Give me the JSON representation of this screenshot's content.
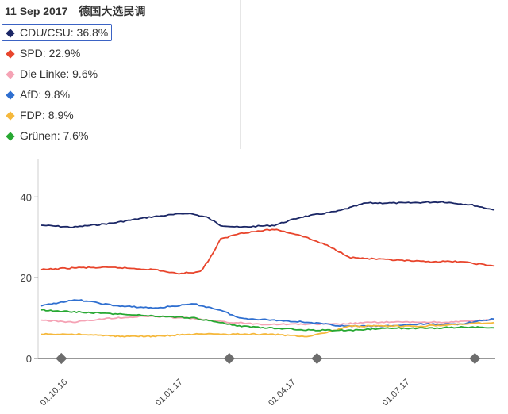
{
  "header": {
    "date": "11 Sep 2017",
    "title": "德国大选民调"
  },
  "legend": [
    {
      "label": "CDU/CSU: 36.8%",
      "color": "#1b2766",
      "selected": true
    },
    {
      "label": "SPD: 22.9%",
      "color": "#e8452c"
    },
    {
      "label": "Die Linke: 9.6%",
      "color": "#f5a3b5"
    },
    {
      "label": "AfD: 9.8%",
      "color": "#2f6fd0"
    },
    {
      "label": "FDP: 8.9%",
      "color": "#f5b83c"
    },
    {
      "label": "Grünen: 7.6%",
      "color": "#27a832"
    }
  ],
  "chart_data": {
    "type": "line",
    "ylim": [
      0,
      44
    ],
    "yticks": [
      0,
      20,
      40
    ],
    "x_range": [
      "2016-09-15",
      "2017-09-11"
    ],
    "xticks": [
      "01.10.16",
      "01.01.17",
      "01.04.17",
      "01.07.17"
    ],
    "xtick_dates": [
      "2016-10-01",
      "2017-01-01",
      "2017-04-01",
      "2017-07-01"
    ],
    "event_marker_dates": [
      "2016-10-01",
      "2017-02-12",
      "2017-04-23",
      "2017-08-27"
    ],
    "grid": false,
    "series": [
      {
        "name": "CDU/CSU",
        "color": "#1b2766",
        "points": [
          [
            "2016-09-15",
            33
          ],
          [
            "2016-10-10",
            32.5
          ],
          [
            "2016-11-10",
            33.5
          ],
          [
            "2016-12-10",
            35
          ],
          [
            "2017-01-10",
            36
          ],
          [
            "2017-01-25",
            35
          ],
          [
            "2017-02-05",
            33
          ],
          [
            "2017-02-20",
            32.5
          ],
          [
            "2017-03-20",
            33
          ],
          [
            "2017-04-10",
            35
          ],
          [
            "2017-05-10",
            36.5
          ],
          [
            "2017-06-01",
            38.5
          ],
          [
            "2017-07-01",
            38.5
          ],
          [
            "2017-08-01",
            38.8
          ],
          [
            "2017-08-25",
            38
          ],
          [
            "2017-09-11",
            36.8
          ]
        ]
      },
      {
        "name": "SPD",
        "color": "#e8452c",
        "points": [
          [
            "2016-09-15",
            22
          ],
          [
            "2016-10-15",
            22.5
          ],
          [
            "2016-11-15",
            22.5
          ],
          [
            "2016-12-15",
            22
          ],
          [
            "2017-01-01",
            21
          ],
          [
            "2017-01-20",
            21.5
          ],
          [
            "2017-01-28",
            25
          ],
          [
            "2017-02-05",
            29.5
          ],
          [
            "2017-02-20",
            31
          ],
          [
            "2017-03-20",
            32
          ],
          [
            "2017-04-10",
            30.5
          ],
          [
            "2017-05-01",
            28
          ],
          [
            "2017-05-20",
            25
          ],
          [
            "2017-06-15",
            24.5
          ],
          [
            "2017-07-15",
            24
          ],
          [
            "2017-08-15",
            24
          ],
          [
            "2017-09-11",
            22.9
          ]
        ]
      },
      {
        "name": "Die Linke",
        "color": "#f5a3b5",
        "points": [
          [
            "2016-09-15",
            9.5
          ],
          [
            "2016-10-10",
            9
          ],
          [
            "2016-11-10",
            10
          ],
          [
            "2016-12-10",
            10.5
          ],
          [
            "2017-01-10",
            10
          ],
          [
            "2017-02-10",
            9
          ],
          [
            "2017-03-10",
            8.5
          ],
          [
            "2017-04-10",
            8.5
          ],
          [
            "2017-05-10",
            8.5
          ],
          [
            "2017-06-10",
            9
          ],
          [
            "2017-07-10",
            9
          ],
          [
            "2017-08-10",
            9
          ],
          [
            "2017-09-11",
            9.6
          ]
        ]
      },
      {
        "name": "AfD",
        "color": "#2f6fd0",
        "points": [
          [
            "2016-09-15",
            13
          ],
          [
            "2016-10-01",
            14
          ],
          [
            "2016-10-15",
            14.5
          ],
          [
            "2016-11-15",
            13
          ],
          [
            "2016-12-15",
            12.5
          ],
          [
            "2017-01-15",
            13.5
          ],
          [
            "2017-02-05",
            12
          ],
          [
            "2017-02-20",
            10
          ],
          [
            "2017-03-20",
            9.5
          ],
          [
            "2017-04-15",
            9
          ],
          [
            "2017-05-15",
            8
          ],
          [
            "2017-06-15",
            8
          ],
          [
            "2017-07-15",
            8.5
          ],
          [
            "2017-08-15",
            8.5
          ],
          [
            "2017-09-11",
            9.8
          ]
        ]
      },
      {
        "name": "FDP",
        "color": "#f5b83c",
        "points": [
          [
            "2016-09-15",
            6
          ],
          [
            "2016-10-15",
            6
          ],
          [
            "2016-11-15",
            5.5
          ],
          [
            "2016-12-15",
            5.5
          ],
          [
            "2017-01-15",
            6
          ],
          [
            "2017-02-15",
            6
          ],
          [
            "2017-03-15",
            6
          ],
          [
            "2017-04-15",
            5.5
          ],
          [
            "2017-05-01",
            6.5
          ],
          [
            "2017-05-20",
            8
          ],
          [
            "2017-06-15",
            8
          ],
          [
            "2017-07-15",
            8
          ],
          [
            "2017-08-15",
            8.5
          ],
          [
            "2017-09-11",
            8.9
          ]
        ]
      },
      {
        "name": "Grünen",
        "color": "#27a832",
        "points": [
          [
            "2016-09-15",
            12
          ],
          [
            "2016-10-15",
            11.5
          ],
          [
            "2016-11-15",
            11
          ],
          [
            "2016-12-15",
            10.5
          ],
          [
            "2017-01-15",
            10
          ],
          [
            "2017-02-05",
            9
          ],
          [
            "2017-02-20",
            8
          ],
          [
            "2017-03-20",
            7.5
          ],
          [
            "2017-04-20",
            7
          ],
          [
            "2017-05-20",
            7
          ],
          [
            "2017-06-20",
            7.5
          ],
          [
            "2017-07-20",
            7.5
          ],
          [
            "2017-08-20",
            7.8
          ],
          [
            "2017-09-11",
            7.6
          ]
        ]
      }
    ]
  }
}
